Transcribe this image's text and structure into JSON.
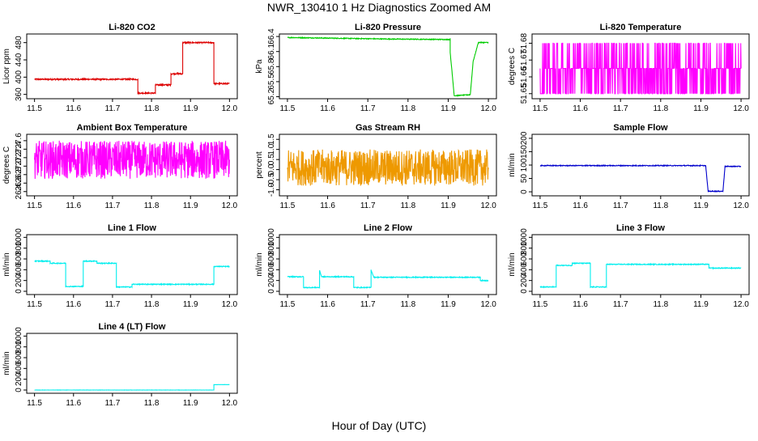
{
  "figure": {
    "title": "NWR_130410  1 Hz Diagnostics Zoomed AM",
    "xlabel": "Hour of Day (UTC)"
  },
  "chart_data": [
    {
      "type": "line",
      "title": "Li-820 CO2",
      "ylabel": "Licor ppm",
      "color": "#dd0000",
      "xlim": [
        11.48,
        12.02
      ],
      "ylim": [
        350,
        500
      ],
      "xticks": [
        "11.5",
        "11.6",
        "11.7",
        "11.8",
        "11.9",
        "12.0"
      ],
      "yticks": [
        360,
        400,
        440,
        480
      ],
      "x": [
        11.5,
        11.765,
        11.765,
        11.81,
        11.81,
        11.85,
        11.85,
        11.88,
        11.88,
        11.96,
        11.96,
        12.0
      ],
      "values": [
        395,
        395,
        363,
        363,
        382,
        382,
        408,
        408,
        480,
        480,
        385,
        385
      ],
      "noise": 1.5
    },
    {
      "type": "line",
      "title": "Li-820 Pressure",
      "ylabel": "kPa",
      "color": "#00cc00",
      "xlim": [
        11.48,
        12.02
      ],
      "ylim": [
        65.16,
        66.45
      ],
      "xticks": [
        "11.5",
        "11.6",
        "11.7",
        "11.8",
        "11.9",
        "12.0"
      ],
      "yticks": [
        "65.2",
        "65.5",
        "65.8",
        "66.1",
        "66.4"
      ],
      "ytick_values": [
        65.2,
        65.5,
        65.8,
        66.1,
        66.4
      ],
      "x": [
        11.5,
        11.75,
        11.905,
        11.905,
        11.915,
        11.955,
        11.962,
        11.975,
        12.0
      ],
      "values": [
        66.38,
        66.35,
        66.34,
        66.08,
        65.22,
        65.24,
        65.9,
        66.28,
        66.28
      ],
      "noise": 0.008
    },
    {
      "type": "line",
      "title": "Li-820 Temperature",
      "ylabel": "degrees C",
      "color": "#ff00ff",
      "xlim": [
        11.48,
        12.02
      ],
      "ylim": [
        51.647,
        51.6855
      ],
      "xticks": [
        "11.5",
        "11.6",
        "11.7",
        "11.8",
        "11.9",
        "12.0"
      ],
      "yticks": [
        "51.65",
        "51.66",
        "51.67",
        "51.68"
      ],
      "ytick_values": [
        51.65,
        51.66,
        51.67,
        51.68
      ],
      "levels": [
        51.65,
        51.665,
        51.68
      ],
      "x": [
        11.5,
        12.0
      ],
      "values": [
        51.665,
        51.665
      ]
    },
    {
      "type": "line",
      "title": "Ambient Box Temperature",
      "ylabel": "degrees C",
      "color": "#ff00ff",
      "xlim": [
        11.48,
        12.02
      ],
      "ylim": [
        26.3,
        27.75
      ],
      "xticks": [
        "11.5",
        "11.6",
        "11.7",
        "11.8",
        "11.9",
        "12.0"
      ],
      "yticks": [
        "26.4",
        "26.6",
        "26.8",
        "27.0",
        "27.2",
        "27.4",
        "27.6"
      ],
      "ytick_values": [
        26.4,
        26.6,
        26.8,
        27.0,
        27.2,
        27.4,
        27.6
      ],
      "x": [
        11.5,
        12.0
      ],
      "values": [
        27.15,
        27.15
      ],
      "noise": 0.45
    },
    {
      "type": "line",
      "title": "Gas Stream RH",
      "ylabel": "percent",
      "color": "#ee9900",
      "xlim": [
        11.48,
        12.02
      ],
      "ylim": [
        -1.3,
        1.75
      ],
      "xticks": [
        "11.5",
        "11.6",
        "11.7",
        "11.8",
        "11.9",
        "12.0"
      ],
      "yticks": [
        "-1.0",
        "-0.5",
        "0.0",
        "0.5",
        "1.0",
        "1.5"
      ],
      "ytick_values": [
        -1.0,
        -0.5,
        0.0,
        0.5,
        1.0,
        1.5
      ],
      "x": [
        11.5,
        12.0
      ],
      "values": [
        0.1,
        0.1
      ],
      "noise": 0.9
    },
    {
      "type": "line",
      "title": "Sample Flow",
      "ylabel": "ml/min",
      "color": "#0000cc",
      "xlim": [
        11.48,
        12.02
      ],
      "ylim": [
        -15,
        215
      ],
      "xticks": [
        "11.5",
        "11.6",
        "11.7",
        "11.8",
        "11.9",
        "12.0"
      ],
      "yticks": [
        0,
        50,
        100,
        150,
        200
      ],
      "x": [
        11.5,
        11.912,
        11.918,
        11.955,
        11.96,
        12.0
      ],
      "values": [
        98,
        98,
        2,
        2,
        95,
        95
      ],
      "noise": 1.5
    },
    {
      "type": "line",
      "title": "Line 1 Flow",
      "ylabel": "ml/min",
      "color": "#00eeee",
      "xlim": [
        11.48,
        12.02
      ],
      "ylim": [
        -60,
        1050
      ],
      "xticks": [
        "11.5",
        "11.6",
        "11.7",
        "11.8",
        "11.9",
        "12.0"
      ],
      "yticks": [
        0,
        200,
        400,
        600,
        800,
        1000
      ],
      "x": [
        11.5,
        11.54,
        11.54,
        11.58,
        11.58,
        11.625,
        11.625,
        11.66,
        11.66,
        11.71,
        11.71,
        11.75,
        11.75,
        11.96,
        11.96,
        12.0
      ],
      "values": [
        560,
        560,
        520,
        520,
        90,
        90,
        560,
        560,
        520,
        520,
        80,
        80,
        130,
        130,
        460,
        460
      ],
      "noise": 8
    },
    {
      "type": "line",
      "title": "Line 2 Flow",
      "ylabel": "ml/min",
      "color": "#00eeee",
      "xlim": [
        11.48,
        12.02
      ],
      "ylim": [
        -60,
        1050
      ],
      "xticks": [
        "11.5",
        "11.6",
        "11.7",
        "11.8",
        "11.9",
        "12.0"
      ],
      "yticks": [
        0,
        200,
        400,
        600,
        800,
        1000
      ],
      "x": [
        11.5,
        11.54,
        11.54,
        11.58,
        11.58,
        11.585,
        11.665,
        11.665,
        11.708,
        11.708,
        11.715,
        11.98,
        11.98,
        12.0
      ],
      "values": [
        270,
        270,
        70,
        70,
        390,
        270,
        270,
        70,
        70,
        400,
        260,
        260,
        200,
        200
      ],
      "noise": 8
    },
    {
      "type": "line",
      "title": "Line 3 Flow",
      "ylabel": "ml/min",
      "color": "#00eeee",
      "xlim": [
        11.48,
        12.02
      ],
      "ylim": [
        -60,
        1050
      ],
      "xticks": [
        "11.5",
        "11.6",
        "11.7",
        "11.8",
        "11.9",
        "12.0"
      ],
      "yticks": [
        0,
        200,
        400,
        600,
        800,
        1000
      ],
      "x": [
        11.5,
        11.54,
        11.54,
        11.58,
        11.58,
        11.625,
        11.625,
        11.665,
        11.665,
        11.92,
        11.92,
        12.0
      ],
      "values": [
        80,
        80,
        480,
        480,
        520,
        520,
        80,
        80,
        500,
        500,
        430,
        430
      ],
      "noise": 8
    },
    {
      "type": "line",
      "title": "Line 4 (LT) Flow",
      "ylabel": "ml/min",
      "color": "#00eeee",
      "xlim": [
        11.48,
        12.02
      ],
      "ylim": [
        -60,
        1050
      ],
      "xticks": [
        "11.5",
        "11.6",
        "11.7",
        "11.8",
        "11.9",
        "12.0"
      ],
      "yticks": [
        0,
        200,
        400,
        600,
        800,
        1000
      ],
      "x": [
        11.5,
        11.96,
        11.96,
        12.0
      ],
      "values": [
        0,
        0,
        100,
        100
      ],
      "noise": 1.5
    }
  ]
}
